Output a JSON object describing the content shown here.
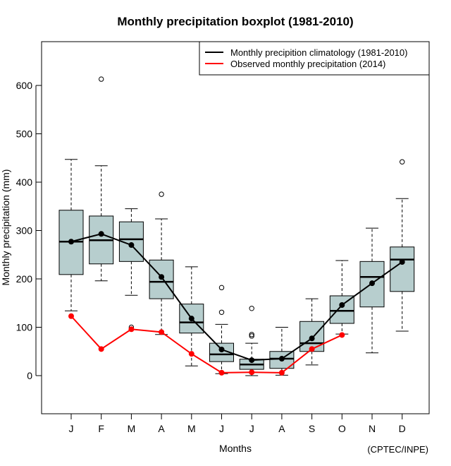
{
  "chart_data": {
    "type": "boxplot",
    "title": "Monthly precipitation boxplot (1981-2010)",
    "xlabel": "Months",
    "ylabel": "Monthly precipitation (mm)",
    "credit": "(CPTEC/INPE)",
    "ylim": [
      -80,
      690
    ],
    "yticks": [
      0,
      100,
      200,
      300,
      400,
      500,
      600
    ],
    "categories": [
      "J",
      "F",
      "M",
      "A",
      "M",
      "J",
      "J",
      "A",
      "S",
      "O",
      "N",
      "D"
    ],
    "legend": {
      "position": "top-right",
      "entries": [
        {
          "label": "Monthly precipition climatology (1981-2010)",
          "color": "#000000"
        },
        {
          "label": "Observed monthly precipitation (2014)",
          "color": "#ff0000"
        }
      ]
    },
    "box_color": "#b7cece",
    "boxes": [
      {
        "month": "J",
        "whisker_low": 134,
        "q1": 209,
        "median": 277,
        "q3": 342,
        "whisker_high": 447,
        "outliers": []
      },
      {
        "month": "F",
        "whisker_low": 196,
        "q1": 231,
        "median": 280,
        "q3": 330,
        "whisker_high": 434,
        "outliers": [
          613
        ]
      },
      {
        "month": "M",
        "whisker_low": 166,
        "q1": 236,
        "median": 282,
        "q3": 318,
        "whisker_high": 345,
        "outliers": [
          100
        ]
      },
      {
        "month": "A",
        "whisker_low": 85,
        "q1": 159,
        "median": 194,
        "q3": 239,
        "whisker_high": 324,
        "outliers": [
          375
        ]
      },
      {
        "month": "M",
        "whisker_low": 20,
        "q1": 88,
        "median": 110,
        "q3": 148,
        "whisker_high": 225,
        "outliers": []
      },
      {
        "month": "J",
        "whisker_low": 4,
        "q1": 29,
        "median": 44,
        "q3": 67,
        "whisker_high": 106,
        "outliers": [
          131,
          182
        ]
      },
      {
        "month": "J",
        "whisker_low": 0,
        "q1": 13,
        "median": 23,
        "q3": 34,
        "whisker_high": 67,
        "outliers": [
          82,
          85,
          139
        ]
      },
      {
        "month": "A",
        "whisker_low": 1,
        "q1": 15,
        "median": 35,
        "q3": 50,
        "whisker_high": 100,
        "outliers": []
      },
      {
        "month": "S",
        "whisker_low": 22,
        "q1": 50,
        "median": 67,
        "q3": 112,
        "whisker_high": 159,
        "outliers": []
      },
      {
        "month": "O",
        "whisker_low": 86,
        "q1": 108,
        "median": 134,
        "q3": 165,
        "whisker_high": 238,
        "outliers": []
      },
      {
        "month": "N",
        "whisker_low": 47,
        "q1": 142,
        "median": 204,
        "q3": 236,
        "whisker_high": 305,
        "outliers": []
      },
      {
        "month": "D",
        "whisker_low": 92,
        "q1": 174,
        "median": 240,
        "q3": 266,
        "whisker_high": 366,
        "outliers": [
          442
        ]
      }
    ],
    "series": [
      {
        "name": "Monthly precipition climatology (1981-2010)",
        "color": "#000000",
        "values": [
          277,
          293,
          270,
          204,
          118,
          54,
          32,
          35,
          77,
          146,
          191,
          235
        ]
      },
      {
        "name": "Observed monthly precipitation (2014)",
        "color": "#ff0000",
        "values": [
          123,
          55,
          96,
          90,
          45,
          6,
          7,
          6,
          55,
          84,
          null,
          null
        ]
      }
    ]
  }
}
